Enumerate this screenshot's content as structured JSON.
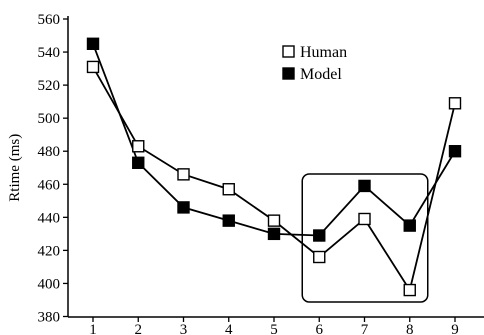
{
  "chart_data": {
    "type": "line",
    "title": "",
    "xlabel": "",
    "ylabel": "Rtime (ms)",
    "x": [
      1,
      2,
      3,
      4,
      5,
      6,
      7,
      8,
      9
    ],
    "xlim": [
      1,
      9
    ],
    "ylim": [
      380,
      560
    ],
    "ytick_step": 20,
    "grid": false,
    "legend_position": "top-right",
    "series": [
      {
        "name": "Human",
        "marker": "open-square",
        "color": "#000000",
        "values": [
          531,
          483,
          466,
          457,
          438,
          416,
          439,
          396,
          509
        ]
      },
      {
        "name": "Model",
        "marker": "filled-square",
        "color": "#000000",
        "values": [
          545,
          473,
          446,
          438,
          430,
          429,
          459,
          435,
          480
        ]
      }
    ],
    "annotations": [
      {
        "type": "highlight-box",
        "x_from": 6,
        "x_to": 8
      }
    ]
  }
}
